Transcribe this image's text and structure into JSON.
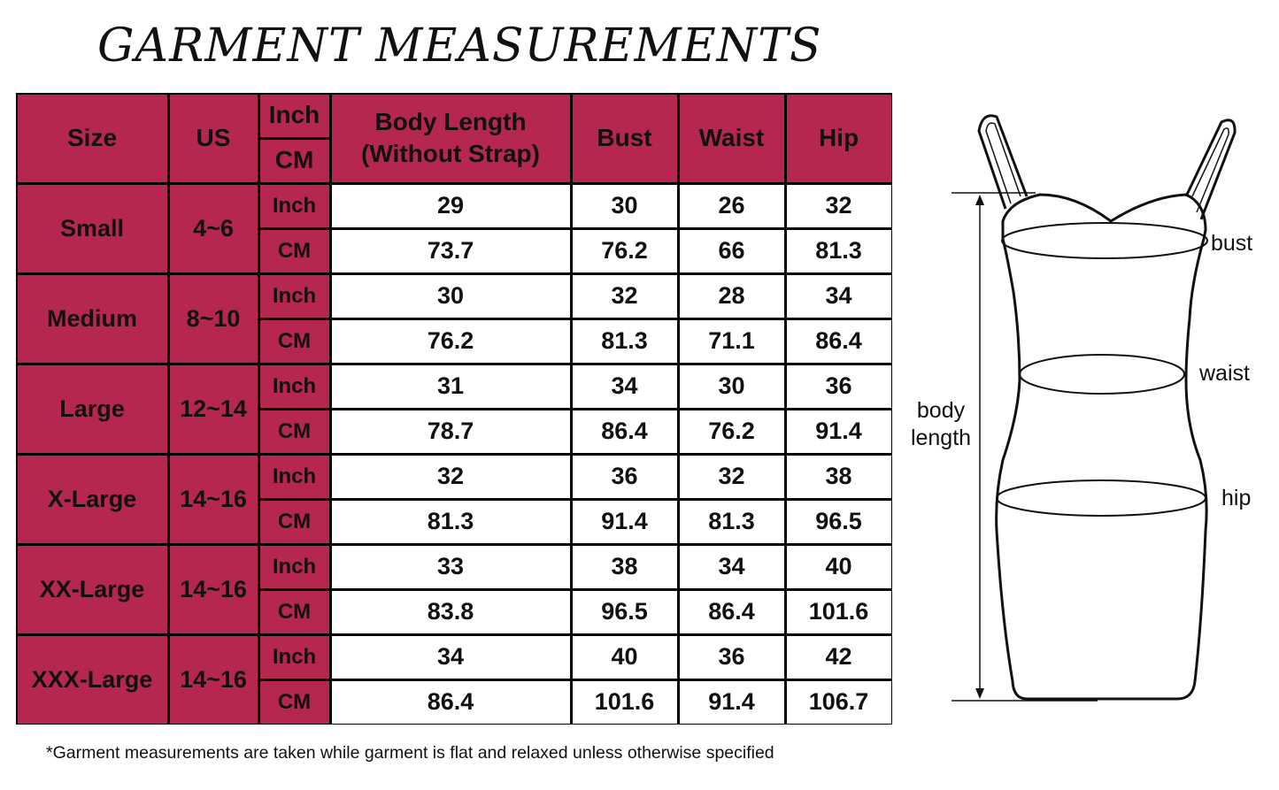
{
  "title": "GARMENT MEASUREMENTS",
  "colors": {
    "header_fill": "#b5274f",
    "value_fill": "#ffffff",
    "border": "#000000"
  },
  "table": {
    "headers": {
      "size": "Size",
      "us": "US",
      "unit_inch": "Inch",
      "unit_cm": "CM",
      "body_length": "Body Length",
      "body_length_note": "(Without Strap)",
      "bust": "Bust",
      "waist": "Waist",
      "hip": "Hip"
    },
    "rows": [
      {
        "size": "Small",
        "us": "4~6",
        "inch": {
          "unit": "Inch",
          "body_length": "29",
          "bust": "30",
          "waist": "26",
          "hip": "32"
        },
        "cm": {
          "unit": "CM",
          "body_length": "73.7",
          "bust": "76.2",
          "waist": "66",
          "hip": "81.3"
        }
      },
      {
        "size": "Medium",
        "us": "8~10",
        "inch": {
          "unit": "Inch",
          "body_length": "30",
          "bust": "32",
          "waist": "28",
          "hip": "34"
        },
        "cm": {
          "unit": "CM",
          "body_length": "76.2",
          "bust": "81.3",
          "waist": "71.1",
          "hip": "86.4"
        }
      },
      {
        "size": "Large",
        "us": "12~14",
        "inch": {
          "unit": "Inch",
          "body_length": "31",
          "bust": "34",
          "waist": "30",
          "hip": "36"
        },
        "cm": {
          "unit": "CM",
          "body_length": "78.7",
          "bust": "86.4",
          "waist": "76.2",
          "hip": "91.4"
        }
      },
      {
        "size": "X-Large",
        "us": "14~16",
        "inch": {
          "unit": "Inch",
          "body_length": "32",
          "bust": "36",
          "waist": "32",
          "hip": "38"
        },
        "cm": {
          "unit": "CM",
          "body_length": "81.3",
          "bust": "91.4",
          "waist": "81.3",
          "hip": "96.5"
        }
      },
      {
        "size": "XX-Large",
        "us": "14~16",
        "inch": {
          "unit": "Inch",
          "body_length": "33",
          "bust": "38",
          "waist": "34",
          "hip": "40"
        },
        "cm": {
          "unit": "CM",
          "body_length": "83.8",
          "bust": "96.5",
          "waist": "86.4",
          "hip": "101.6"
        }
      },
      {
        "size": "XXX-Large",
        "us": "14~16",
        "inch": {
          "unit": "Inch",
          "body_length": "34",
          "bust": "40",
          "waist": "36",
          "hip": "42"
        },
        "cm": {
          "unit": "CM",
          "body_length": "86.4",
          "bust": "101.6",
          "waist": "91.4",
          "hip": "106.7"
        }
      }
    ]
  },
  "diagram": {
    "labels": {
      "bust": "bust",
      "waist": "waist",
      "hip": "hip",
      "body_length_1": "body",
      "body_length_2": "length"
    }
  },
  "footnote": "*Garment measurements are taken while garment is flat and relaxed unless otherwise specified"
}
